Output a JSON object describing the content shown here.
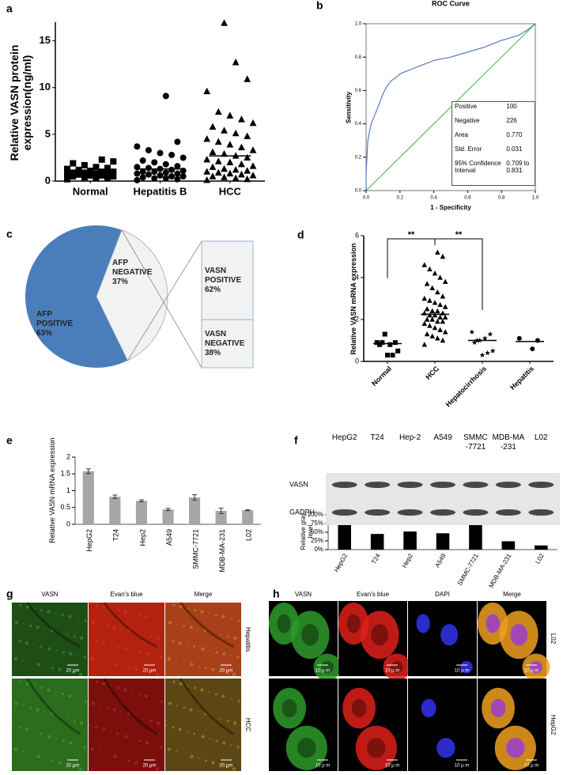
{
  "chart_data": [
    {
      "panel_label": "a",
      "type": "strip",
      "ylabel": "Relative VASN protein expression(ng/ml)",
      "categories": [
        "Normal",
        "Hepatitis B",
        "HCC"
      ],
      "groups": [
        {
          "marker": "square",
          "color": "#000000",
          "mean": 0.9,
          "values": [
            0.2,
            0.3,
            0.3,
            0.4,
            0.5,
            0.5,
            0.6,
            0.6,
            0.7,
            0.7,
            0.8,
            0.8,
            0.9,
            0.9,
            1.0,
            1.0,
            1.1,
            1.2,
            1.3,
            1.4,
            1.5,
            1.7,
            1.9,
            2.1,
            2.3
          ]
        },
        {
          "marker": "circle",
          "color": "#000000",
          "mean": 1.3,
          "values": [
            0.1,
            0.2,
            0.3,
            0.3,
            0.4,
            0.5,
            0.5,
            0.6,
            0.7,
            0.8,
            0.8,
            0.9,
            1.0,
            1.0,
            1.1,
            1.2,
            1.3,
            1.4,
            1.5,
            1.6,
            1.8,
            2.0,
            2.2,
            2.5,
            2.8,
            3.0,
            3.3,
            3.7,
            4.2,
            9.1
          ]
        },
        {
          "marker": "triangle",
          "color": "#000000",
          "mean": 2.7,
          "values": [
            0.1,
            0.2,
            0.3,
            0.4,
            0.5,
            0.6,
            0.7,
            0.8,
            0.9,
            1.0,
            1.1,
            1.2,
            1.3,
            1.5,
            1.6,
            1.8,
            2.0,
            2.1,
            2.3,
            2.5,
            2.7,
            2.9,
            3.1,
            3.3,
            3.6,
            3.9,
            4.2,
            4.5,
            4.8,
            5.1,
            5.4,
            5.8,
            6.2,
            6.6,
            7.0,
            7.4,
            9.6,
            10.9,
            12.7,
            16.9
          ]
        }
      ],
      "ylim": [
        0,
        17
      ],
      "yticks": [
        0,
        5,
        10,
        15
      ]
    },
    {
      "panel_label": "b",
      "type": "line",
      "title": "ROC Curve",
      "xlabel": "1 - Specificity",
      "ylabel": "Sensitivity",
      "x": [
        0,
        0,
        0.01,
        0.02,
        0.03,
        0.05,
        0.07,
        0.1,
        0.12,
        0.15,
        0.18,
        0.2,
        0.25,
        0.3,
        0.35,
        0.4,
        0.5,
        0.6,
        0.7,
        0.8,
        0.9,
        0.95,
        1
      ],
      "series": [
        {
          "color": "#5a7bbf",
          "values": [
            0,
            0.1,
            0.3,
            0.35,
            0.4,
            0.45,
            0.5,
            0.58,
            0.62,
            0.66,
            0.68,
            0.7,
            0.72,
            0.74,
            0.76,
            0.78,
            0.8,
            0.83,
            0.86,
            0.9,
            0.93,
            0.96,
            1
          ]
        }
      ],
      "reference_line": {
        "x": [
          0,
          1
        ],
        "y": [
          0,
          1
        ],
        "color": "#3cb34a"
      },
      "xlim": [
        0,
        1
      ],
      "ylim": [
        0,
        1
      ],
      "xticks": [
        {
          "value": 0,
          "label": "0.0"
        },
        0.2,
        0.4,
        0.6,
        0.8,
        {
          "value": 1,
          "label": "1.0"
        }
      ],
      "yticks": [
        {
          "value": 0,
          "label": "0.0"
        },
        0.2,
        0.4,
        0.6,
        0.8,
        {
          "value": 1,
          "label": "1.0"
        }
      ],
      "stats": [
        [
          "Positive",
          "100"
        ],
        [
          "Negative",
          "226"
        ],
        [
          "Area",
          "0.770"
        ],
        [
          "Std. Error",
          "0.031"
        ],
        [
          "95% Confidence Interval",
          "0.709 to 0.831"
        ]
      ]
    },
    {
      "panel_label": "c",
      "type": "pie",
      "categories": [
        "AFP POSITIVE",
        "AFP NEGATIVE"
      ],
      "values": [
        63,
        37
      ],
      "value_labels": [
        "63%",
        "37%"
      ],
      "colors": [
        "#4a7ebb",
        "#f2f2f2"
      ],
      "breakdown": {
        "categories": [
          "VASN POSITIVE",
          "VASN NEGATIVE"
        ],
        "values": [
          62,
          38
        ],
        "value_labels": [
          "62%",
          "38%"
        ],
        "color": "#f2f2f2"
      }
    },
    {
      "panel_label": "d",
      "type": "strip",
      "ylabel": "Relative VASN mRNA expression",
      "categories": [
        "Normal",
        "HCC",
        "Hepatocirrhosis",
        "Hepatitis"
      ],
      "groups": [
        {
          "marker": "square",
          "color": "#000000",
          "mean": 0.85,
          "values": [
            0.9,
            0.9,
            0.8,
            1.3,
            0.8,
            0.5,
            0.3,
            0.3,
            0.9
          ]
        },
        {
          "marker": "triangle",
          "color": "#000000",
          "mean": 2.25,
          "values": [
            0.8,
            1.0,
            1.1,
            1.2,
            1.3,
            1.4,
            1.5,
            1.6,
            1.7,
            1.8,
            1.9,
            1.9,
            2.0,
            2.0,
            2.1,
            2.1,
            2.2,
            2.2,
            2.3,
            2.3,
            2.4,
            2.4,
            2.5,
            2.6,
            2.7,
            2.8,
            2.9,
            3.0,
            3.1,
            3.3,
            3.5,
            3.7,
            3.8,
            4.0,
            4.2,
            4.4,
            4.6,
            5.0,
            5.2
          ]
        },
        {
          "marker": "star",
          "color": "#000000",
          "mean": 1.0,
          "values": [
            1.4,
            1.3,
            1.1,
            1.0,
            0.9,
            0.5,
            0.4,
            0.3,
            1.0
          ]
        },
        {
          "marker": "circle",
          "color": "#000000",
          "mean": 0.95,
          "values": [
            1.1,
            1.0,
            0.6
          ]
        }
      ],
      "ylim": [
        0,
        6
      ],
      "yticks": [
        0,
        2,
        4,
        6
      ],
      "annotations": [
        "**",
        "**"
      ]
    },
    {
      "panel_label": "e",
      "type": "bar",
      "ylabel": "Relative VASN mRNA expression",
      "categories": [
        "HepG2",
        "T24",
        "Hep2",
        "A549",
        "SMMC-7721",
        "MDB-MA-231",
        "L02"
      ],
      "values": [
        1.58,
        0.82,
        0.7,
        0.44,
        0.8,
        0.4,
        0.42
      ],
      "errors": [
        0.07,
        0.05,
        0.03,
        0.03,
        0.08,
        0.08,
        0.01
      ],
      "color": "#a6a6a6",
      "ylim": [
        0,
        2
      ],
      "yticks": [
        0,
        0.5,
        1,
        1.5,
        2
      ]
    },
    {
      "panel_label": "f",
      "type": "bar",
      "ylabel": "Relative gray level",
      "categories": [
        "HepG2",
        "T24",
        "Hep2",
        "A549",
        "SMMC-7721",
        "MDB-MA-231",
        "L02"
      ],
      "values": [
        100,
        45,
        52,
        47,
        78,
        24,
        12
      ],
      "color": "#000000",
      "ylim": [
        0,
        100
      ],
      "yticks": [
        {
          "value": 0,
          "label": "0%"
        },
        {
          "value": 25,
          "label": "25%"
        },
        {
          "value": 50,
          "label": "50%"
        },
        {
          "value": 75,
          "label": "75%"
        },
        {
          "value": 100,
          "label": "100%"
        }
      ],
      "blot": {
        "lanes": [
          "HepG2",
          "T24",
          "Hep-2",
          "A549",
          "SMMC -7721",
          "MDB-MA -231",
          "L02"
        ],
        "rows": [
          "VASN",
          "GADPH"
        ]
      }
    }
  ],
  "micrographs": [
    {
      "panel_label": "g",
      "columns": [
        "VASN",
        "Evan's blue",
        "Merge"
      ],
      "rows": [
        "Hepatitis",
        "HCC"
      ],
      "scale_bar": "20 μm"
    },
    {
      "panel_label": "h",
      "columns": [
        "VASN",
        "Evan's blue",
        "DAPI",
        "Merge"
      ],
      "rows": [
        "L02",
        "HepG2"
      ],
      "scale_bar": "10 μ m"
    }
  ]
}
